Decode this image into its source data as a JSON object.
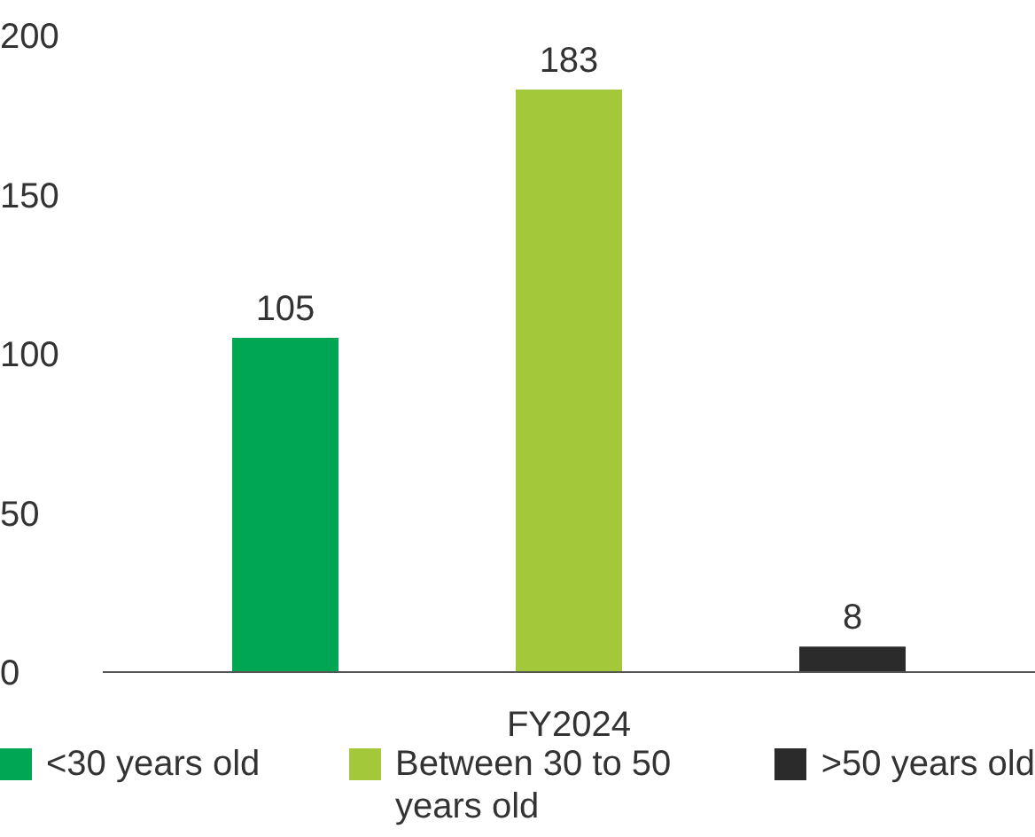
{
  "chart_data": {
    "type": "bar",
    "categories": [
      "FY2024"
    ],
    "series": [
      {
        "name": "<30 years old",
        "color": "#00a651",
        "values": [
          105
        ]
      },
      {
        "name": "Between 30 to 50 years old",
        "color": "#a3c83a",
        "values": [
          183
        ]
      },
      {
        "name": ">50 years old",
        "color": "#2b2b2b",
        "values": [
          8
        ]
      }
    ],
    "ylim": [
      0,
      200
    ],
    "yticks": [
      0,
      50,
      100,
      150,
      200
    ],
    "grid": false,
    "legend": "bottom",
    "data_labels": true
  }
}
